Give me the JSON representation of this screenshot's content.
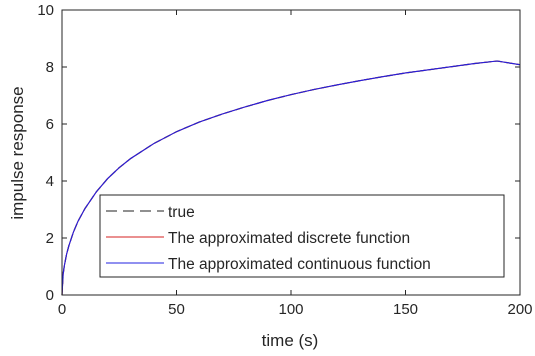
{
  "chart_data": {
    "type": "line",
    "xlabel": "time (s)",
    "ylabel": "impulse response",
    "xlim": [
      0,
      200
    ],
    "ylim": [
      0,
      10
    ],
    "x_ticks": [
      0,
      50,
      100,
      150,
      200
    ],
    "y_ticks": [
      0,
      2,
      4,
      6,
      8,
      10
    ],
    "grid": false,
    "legend_position": "bottom-right",
    "series": [
      {
        "name": "true",
        "color": "#4d4d4d",
        "style": "dashed",
        "x": [
          0,
          0.5,
          1,
          2,
          3,
          5,
          7,
          10,
          15,
          20,
          25,
          30,
          40,
          50,
          60,
          70,
          80,
          90,
          100,
          110,
          120,
          130,
          140,
          150,
          160,
          170,
          180,
          190,
          200
        ],
        "y": [
          0,
          0.73,
          1.02,
          1.43,
          1.73,
          2.21,
          2.59,
          3.03,
          3.62,
          4.09,
          4.47,
          4.79,
          5.31,
          5.73,
          6.07,
          6.35,
          6.6,
          6.83,
          7.03,
          7.21,
          7.37,
          7.52,
          7.66,
          7.79,
          7.9,
          8.01,
          8.12,
          8.21,
          8.08
        ]
      },
      {
        "name": "The approximated discrete function",
        "color": "#d62020",
        "style": "solid",
        "x": [
          0,
          0.5,
          1,
          2,
          3,
          5,
          7,
          10,
          15,
          20,
          25,
          30,
          40,
          50,
          60,
          70,
          80,
          90,
          100,
          110,
          120,
          130,
          140,
          150,
          160,
          170,
          180,
          190,
          200
        ],
        "y": [
          0,
          0.73,
          1.02,
          1.43,
          1.73,
          2.21,
          2.59,
          3.03,
          3.62,
          4.09,
          4.47,
          4.79,
          5.31,
          5.73,
          6.07,
          6.35,
          6.6,
          6.83,
          7.03,
          7.21,
          7.37,
          7.52,
          7.66,
          7.79,
          7.9,
          8.01,
          8.12,
          8.21,
          8.08
        ]
      },
      {
        "name": "The approximated continuous function",
        "color": "#2020e0",
        "style": "solid",
        "x": [
          0,
          0.5,
          1,
          2,
          3,
          5,
          7,
          10,
          15,
          20,
          25,
          30,
          40,
          50,
          60,
          70,
          80,
          90,
          100,
          110,
          120,
          130,
          140,
          150,
          160,
          170,
          180,
          190,
          200
        ],
        "y": [
          0,
          0.73,
          1.02,
          1.43,
          1.73,
          2.21,
          2.59,
          3.03,
          3.62,
          4.09,
          4.47,
          4.79,
          5.31,
          5.73,
          6.07,
          6.35,
          6.6,
          6.83,
          7.03,
          7.21,
          7.37,
          7.52,
          7.66,
          7.79,
          7.9,
          8.01,
          8.12,
          8.21,
          8.08
        ]
      }
    ]
  }
}
